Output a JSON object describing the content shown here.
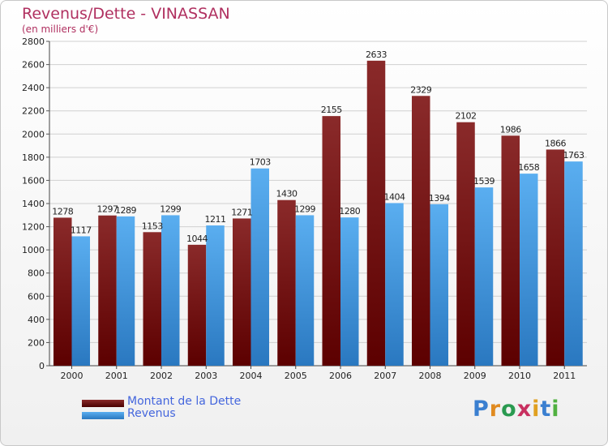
{
  "title": "Revenus/Dette - VINASSAN",
  "subtitle": "(en milliers d'€)",
  "logo": "Proxiti",
  "colors": {
    "dette": "#7a1818",
    "revenus": "#4a9fe0",
    "grid": "#d0d0d0",
    "title": "#b03060",
    "legend_text": "#4466dd"
  },
  "chart_data": {
    "type": "bar",
    "categories": [
      "2000",
      "2001",
      "2002",
      "2003",
      "2004",
      "2005",
      "2006",
      "2007",
      "2008",
      "2009",
      "2010",
      "2011"
    ],
    "series": [
      {
        "name": "Montant de la Dette",
        "values": [
          1278,
          1297,
          1153,
          1044,
          1271,
          1430,
          2155,
          2633,
          2329,
          2102,
          1986,
          1866
        ],
        "labels": [
          "1278",
          "1297",
          "1153",
          "1044",
          "1271",
          "1430",
          "2155",
          "2633",
          "2329",
          "2102",
          "1986",
          "1866"
        ]
      },
      {
        "name": "Revenus",
        "values": [
          1117,
          1289,
          1299,
          1211,
          1703,
          1299,
          1280,
          1404,
          1394,
          1539,
          1658,
          1763
        ],
        "labels": [
          "1117",
          "1289",
          "1299",
          "1211",
          "1703",
          "1299",
          "1280",
          "1404",
          "1394",
          "1539",
          "1658",
          "1763"
        ]
      }
    ],
    "ylim": [
      0,
      2800
    ],
    "yticks": [
      "0",
      "200",
      "400",
      "600",
      "800",
      "1000",
      "1200",
      "1400",
      "1600",
      "1800",
      "2000",
      "2200",
      "2400",
      "2600",
      "2800"
    ],
    "grid": true,
    "legend": "bottom-left"
  }
}
